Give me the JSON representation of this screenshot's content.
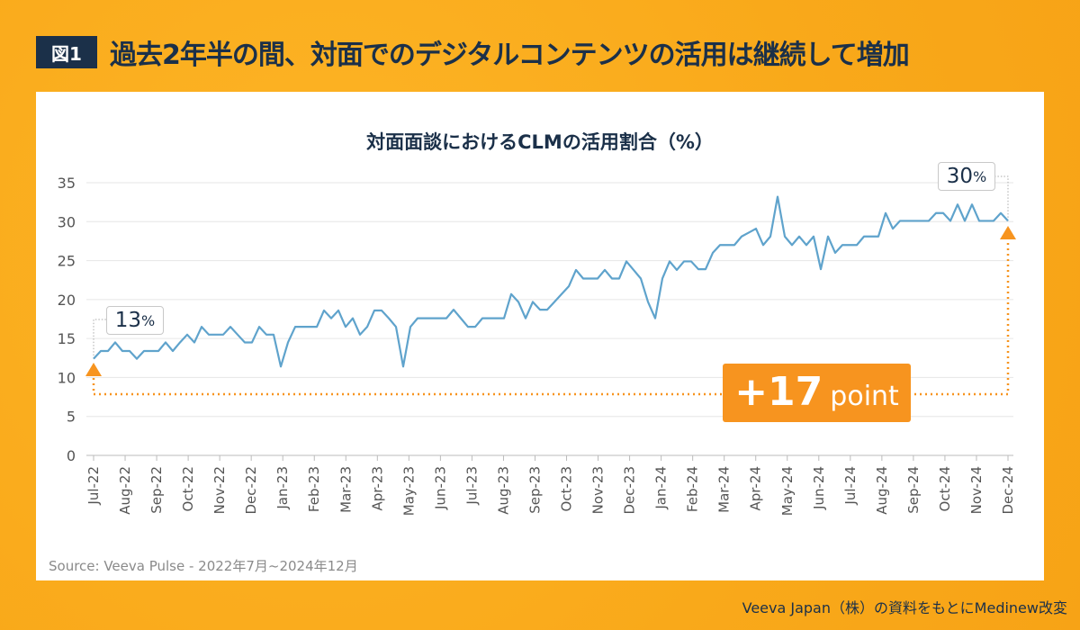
{
  "header": {
    "badge": "図1",
    "title": "過去2年半の間、対面でのデジタルコンテンツの活用は継続して増加"
  },
  "chart_data": {
    "type": "line",
    "title": "対面面談におけるCLMの活用割合（%）",
    "ylim": [
      0,
      35
    ],
    "yticks": [
      0,
      5,
      10,
      15,
      20,
      25,
      30,
      35
    ],
    "grid": true,
    "xticks": [
      "Jul-22",
      "Aug-22",
      "Sep-22",
      "Oct-22",
      "Nov-22",
      "Dec-22",
      "Jan-23",
      "Feb-23",
      "Mar-23",
      "Apr-23",
      "May-23",
      "Jun-23",
      "Jul-23",
      "Aug-23",
      "Sep-23",
      "Oct-23",
      "Nov-23",
      "Dec-23",
      "Jan-24",
      "Feb-24",
      "Mar-24",
      "Apr-24",
      "May-24",
      "Jun-24",
      "Jul-24",
      "Aug-24",
      "Sep-24",
      "Oct-24",
      "Nov-24",
      "Dec-24"
    ],
    "series": [
      {
        "values": [
          12.4,
          13.4,
          13.4,
          14.5,
          13.4,
          13.4,
          12.4,
          13.4,
          13.4,
          13.4,
          14.5,
          13.4,
          14.5,
          15.5,
          14.5,
          16.5,
          15.5,
          15.5,
          15.5,
          16.5,
          15.5,
          14.5,
          14.5,
          16.5,
          15.5,
          15.5,
          11.4,
          14.5,
          16.5,
          16.5,
          16.5,
          16.5,
          18.6,
          17.6,
          18.6,
          16.5,
          17.6,
          15.5,
          16.5,
          18.6,
          18.6,
          17.6,
          16.5,
          11.4,
          16.5,
          17.6,
          17.6,
          17.6,
          17.6,
          17.6,
          18.7,
          17.6,
          16.5,
          16.5,
          17.6,
          17.6,
          17.6,
          17.6,
          20.7,
          19.7,
          17.6,
          19.7,
          18.7,
          18.7,
          19.7,
          20.7,
          21.7,
          23.8,
          22.7,
          22.7,
          22.7,
          23.8,
          22.7,
          22.7,
          24.9,
          23.8,
          22.7,
          19.7,
          17.6,
          22.7,
          24.9,
          23.8,
          24.9,
          24.9,
          23.9,
          23.9,
          26.0,
          27.0,
          27.0,
          27.0,
          28.1,
          28.6,
          29.1,
          27.0,
          28.1,
          33.2,
          28.1,
          27.0,
          28.1,
          27.0,
          28.1,
          23.9,
          28.1,
          26.0,
          27.0,
          27.0,
          27.0,
          28.1,
          28.1,
          28.1,
          31.1,
          29.1,
          30.1,
          30.1,
          30.1,
          30.1,
          30.1,
          31.1,
          31.1,
          30.1,
          32.2,
          30.1,
          32.2,
          30.1,
          30.1,
          30.1,
          31.1,
          30.1
        ]
      }
    ],
    "annotations": {
      "start_label": "13",
      "end_label": "30",
      "percent": "%",
      "delta_value": "+17",
      "delta_unit": "point"
    },
    "colors": {
      "line": "#5fa3cc",
      "accent": "#f7941f",
      "text": "#1b3049"
    }
  },
  "source": "Source: Veeva Pulse - 2022年7月~2024年12月",
  "credit": "Veeva Japan（株）の資料をもとにMedinew改変"
}
